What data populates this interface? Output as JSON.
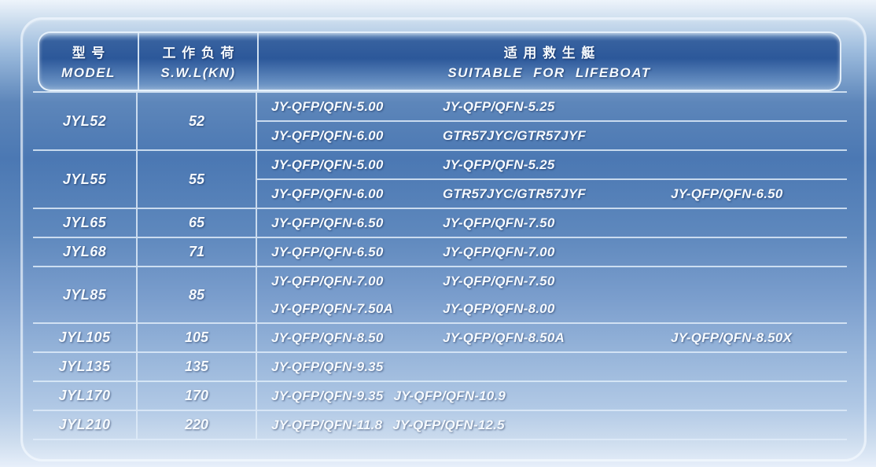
{
  "table": {
    "header": {
      "col1": {
        "zh": "型号",
        "en": "MODEL"
      },
      "col2": {
        "zh": "工作负荷",
        "en": "S.W.L(KN)"
      },
      "col3": {
        "zh": "适用救生艇",
        "en": "SUITABLE FOR LIFEBOAT"
      }
    },
    "rows": [
      {
        "model": "JYL52",
        "swl": "52",
        "boats": [
          [
            "JY-QFP/QFN-5.00",
            "JY-QFP/QFN-5.25"
          ],
          [
            "JY-QFP/QFN-6.00",
            "GTR57JYC/GTR57JYF"
          ]
        ],
        "split": true
      },
      {
        "model": "JYL55",
        "swl": "55",
        "boats": [
          [
            "JY-QFP/QFN-5.00",
            "JY-QFP/QFN-5.25"
          ],
          [
            "JY-QFP/QFN-6.00",
            "GTR57JYC/GTR57JYF",
            "JY-QFP/QFN-6.50"
          ]
        ],
        "split": true
      },
      {
        "model": "JYL65",
        "swl": "65",
        "boats": [
          [
            "JY-QFP/QFN-6.50",
            "JY-QFP/QFN-7.50"
          ]
        ]
      },
      {
        "model": "JYL68",
        "swl": "71",
        "boats": [
          [
            "JY-QFP/QFN-6.50",
            "JY-QFP/QFN-7.00"
          ]
        ]
      },
      {
        "model": "JYL85",
        "swl": "85",
        "boats": [
          [
            "JY-QFP/QFN-7.00",
            "JY-QFP/QFN-7.50"
          ],
          [
            "JY-QFP/QFN-7.50A",
            "JY-QFP/QFN-8.00"
          ]
        ],
        "split": false
      },
      {
        "model": "JYL105",
        "swl": "105",
        "boats": [
          [
            "JY-QFP/QFN-8.50",
            "JY-QFP/QFN-8.50A",
            "JY-QFP/QFN-8.50X"
          ]
        ]
      },
      {
        "model": "JYL135",
        "swl": "135",
        "boats": [
          [
            "JY-QFP/QFN-9.35"
          ]
        ]
      },
      {
        "model": "JYL170",
        "swl": "170",
        "boats": [
          [
            "JY-QFP/QFN-9.35",
            "JY-QFP/QFN-10.9"
          ]
        ],
        "tight": true
      },
      {
        "model": "JYL210",
        "swl": "220",
        "boats": [
          [
            "JY-QFP/QFN-11.8",
            "JY-QFP/QFN-12.5"
          ]
        ],
        "tight": true
      }
    ]
  },
  "colors": {
    "header_gradient_top": "#2c589a",
    "header_gradient_bottom": "#7ba0cc",
    "background_mid_blue": "#4b78b3",
    "background_light": "#eef4fb",
    "separator_line": "#dcebf8",
    "text": "#f6fafe"
  }
}
